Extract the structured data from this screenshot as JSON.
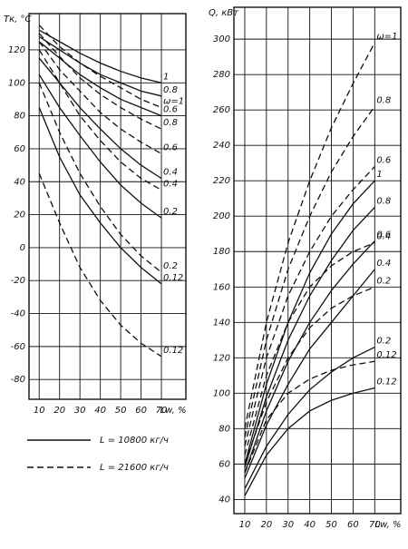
{
  "chart_data": [
    {
      "type": "line",
      "y_label": "Tк, °C",
      "x_label": "Lw, %",
      "color": "#111",
      "grid": true,
      "x": [
        10,
        20,
        30,
        40,
        50,
        60,
        70
      ],
      "xlim": [
        5,
        82
      ],
      "xticks": [
        10,
        20,
        30,
        40,
        50,
        60,
        70
      ],
      "ylim": [
        -92,
        142
      ],
      "yticks": [
        120,
        100,
        80,
        60,
        40,
        20,
        0,
        -20,
        -40,
        -60,
        -80
      ],
      "series": [
        {
          "name": "1",
          "dash": false,
          "values": [
            132,
            125,
            118,
            112,
            107,
            103,
            100
          ]
        },
        {
          "name": "0.8",
          "dash": false,
          "values": [
            128,
            120,
            112,
            105,
            100,
            95,
            92
          ]
        },
        {
          "name": "0.6",
          "dash": false,
          "values": [
            125,
            115,
            105,
            97,
            90,
            85,
            80
          ]
        },
        {
          "name": "0.4",
          "dash": false,
          "values": [
            115,
            100,
            85,
            72,
            60,
            50,
            42
          ]
        },
        {
          "name": "0.2",
          "dash": false,
          "values": [
            105,
            85,
            68,
            52,
            38,
            27,
            18
          ]
        },
        {
          "name": "0.12",
          "dash": false,
          "values": [
            85,
            55,
            32,
            15,
            0,
            -12,
            -22
          ]
        },
        {
          "name": "ω=1",
          "dash": true,
          "values": [
            135,
            122,
            112,
            104,
            97,
            90,
            85
          ]
        },
        {
          "name": "0.8",
          "dash": true,
          "values": [
            130,
            116,
            103,
            93,
            85,
            78,
            72
          ]
        },
        {
          "name": "0.6",
          "dash": true,
          "values": [
            125,
            108,
            95,
            82,
            72,
            64,
            57
          ]
        },
        {
          "name": "0.4",
          "dash": true,
          "values": [
            120,
            100,
            80,
            65,
            52,
            42,
            35
          ]
        },
        {
          "name": "0.2",
          "dash": true,
          "values": [
            100,
            70,
            45,
            25,
            8,
            -5,
            -15
          ]
        },
        {
          "name": "0.12",
          "dash": true,
          "values": [
            45,
            15,
            -12,
            -32,
            -47,
            -58,
            -66
          ]
        }
      ],
      "legend": [
        {
          "label": "L = 10800 кг/ч",
          "dash": false
        },
        {
          "label": "L = 21600 кг/ч",
          "dash": true
        }
      ]
    },
    {
      "type": "line",
      "y_label": "Q, кВт",
      "x_label": "Lw, %",
      "color": "#111",
      "grid": true,
      "x": [
        10,
        20,
        30,
        40,
        50,
        60,
        70
      ],
      "xlim": [
        5,
        82
      ],
      "xticks": [
        10,
        20,
        30,
        40,
        50,
        60,
        70
      ],
      "ylim": [
        32,
        318
      ],
      "yticks": [
        300,
        280,
        260,
        240,
        220,
        200,
        180,
        160,
        140,
        120,
        100,
        80,
        60,
        40
      ],
      "series": [
        {
          "name": "ω=1",
          "dash": true,
          "values": [
            80,
            140,
            185,
            220,
            250,
            275,
            298
          ]
        },
        {
          "name": "0.8",
          "dash": true,
          "values": [
            75,
            130,
            170,
            200,
            225,
            245,
            262
          ]
        },
        {
          "name": "0.6",
          "dash": true,
          "values": [
            70,
            120,
            155,
            180,
            200,
            215,
            228
          ]
        },
        {
          "name": "0.4",
          "dash": true,
          "values": [
            65,
            110,
            140,
            160,
            172,
            180,
            185
          ]
        },
        {
          "name": "0.2",
          "dash": true,
          "values": [
            60,
            95,
            120,
            137,
            148,
            155,
            160
          ]
        },
        {
          "name": "0.12",
          "dash": true,
          "values": [
            55,
            85,
            100,
            108,
            113,
            116,
            118
          ]
        },
        {
          "name": "1",
          "dash": false,
          "values": [
            60,
            105,
            140,
            168,
            190,
            207,
            220
          ]
        },
        {
          "name": "0.8",
          "dash": false,
          "values": [
            58,
            98,
            130,
            155,
            175,
            192,
            205
          ]
        },
        {
          "name": "0.6",
          "dash": false,
          "values": [
            55,
            90,
            118,
            140,
            158,
            173,
            186
          ]
        },
        {
          "name": "0.4",
          "dash": false,
          "values": [
            52,
            82,
            105,
            125,
            140,
            155,
            170
          ]
        },
        {
          "name": "0.2",
          "dash": false,
          "values": [
            46,
            70,
            88,
            102,
            112,
            120,
            126
          ]
        },
        {
          "name": "0.12",
          "dash": false,
          "values": [
            42,
            65,
            80,
            90,
            96,
            100,
            103
          ]
        }
      ]
    }
  ]
}
